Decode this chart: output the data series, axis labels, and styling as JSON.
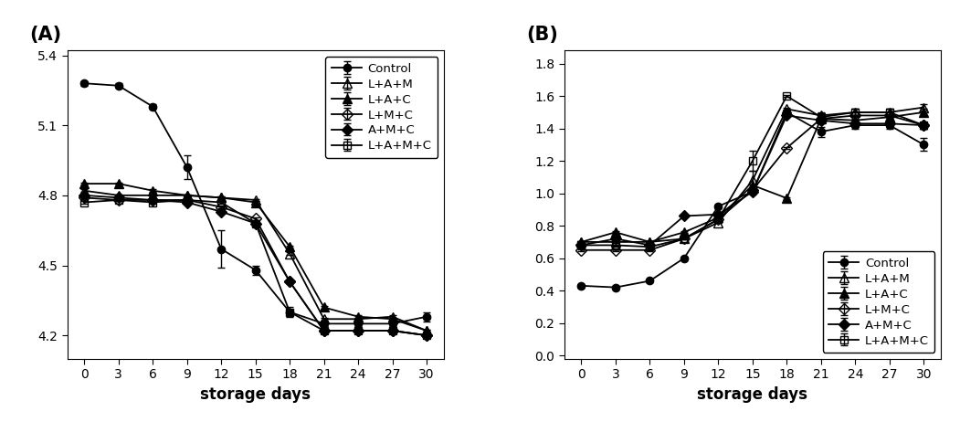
{
  "x": [
    0,
    3,
    6,
    9,
    12,
    15,
    18,
    21,
    24,
    27,
    30
  ],
  "A": {
    "title": "(A)",
    "ylim": [
      4.1,
      5.42
    ],
    "yticks": [
      4.2,
      4.5,
      4.8,
      5.1,
      5.4
    ],
    "series": {
      "Control": [
        5.28,
        5.27,
        5.18,
        4.92,
        4.57,
        4.48,
        4.3,
        4.25,
        4.25,
        4.25,
        4.28
      ],
      "L+A+M": [
        4.82,
        4.8,
        4.8,
        4.8,
        4.79,
        4.78,
        4.55,
        4.27,
        4.27,
        4.28,
        4.22
      ],
      "L+A+C": [
        4.85,
        4.85,
        4.82,
        4.8,
        4.79,
        4.77,
        4.58,
        4.32,
        4.28,
        4.27,
        4.22
      ],
      "L+M+C": [
        4.79,
        4.78,
        4.78,
        4.78,
        4.75,
        4.7,
        4.43,
        4.22,
        4.22,
        4.22,
        4.2
      ],
      "A+M+C": [
        4.8,
        4.79,
        4.78,
        4.77,
        4.73,
        4.68,
        4.43,
        4.22,
        4.22,
        4.22,
        4.2
      ],
      "L+A+M+C": [
        4.77,
        4.78,
        4.77,
        4.78,
        4.77,
        4.68,
        4.3,
        4.22,
        4.22,
        4.22,
        4.2
      ]
    },
    "errors": {
      "Control": [
        0.01,
        0.01,
        0.01,
        0.05,
        0.08,
        0.02,
        0.02,
        0.01,
        0.01,
        0.01,
        0.02
      ],
      "L+A+M": [
        0.005,
        0.005,
        0.005,
        0.005,
        0.005,
        0.005,
        0.005,
        0.005,
        0.005,
        0.005,
        0.005
      ],
      "L+A+C": [
        0.005,
        0.005,
        0.005,
        0.005,
        0.005,
        0.005,
        0.005,
        0.005,
        0.005,
        0.005,
        0.005
      ],
      "L+M+C": [
        0.005,
        0.005,
        0.005,
        0.005,
        0.005,
        0.005,
        0.005,
        0.005,
        0.005,
        0.005,
        0.005
      ],
      "A+M+C": [
        0.005,
        0.005,
        0.005,
        0.005,
        0.005,
        0.005,
        0.005,
        0.005,
        0.005,
        0.005,
        0.005
      ],
      "L+A+M+C": [
        0.005,
        0.005,
        0.005,
        0.005,
        0.005,
        0.005,
        0.005,
        0.005,
        0.005,
        0.005,
        0.005
      ]
    },
    "legend_loc": "upper right"
  },
  "B": {
    "title": "(B)",
    "ylim": [
      -0.02,
      1.88
    ],
    "yticks": [
      0.0,
      0.2,
      0.4,
      0.6,
      0.8,
      1.0,
      1.2,
      1.4,
      1.6,
      1.8
    ],
    "series": {
      "Control": [
        0.43,
        0.42,
        0.46,
        0.6,
        0.92,
        1.01,
        1.5,
        1.38,
        1.42,
        1.42,
        1.3
      ],
      "L+A+M": [
        0.7,
        0.7,
        0.7,
        0.72,
        0.82,
        1.08,
        1.52,
        1.48,
        1.5,
        1.5,
        1.53
      ],
      "L+A+C": [
        0.7,
        0.76,
        0.7,
        0.76,
        0.85,
        1.05,
        0.97,
        1.46,
        1.45,
        1.47,
        1.5
      ],
      "L+M+C": [
        0.65,
        0.65,
        0.65,
        0.72,
        0.84,
        1.02,
        1.28,
        1.46,
        1.48,
        1.48,
        1.42
      ],
      "A+M+C": [
        0.68,
        0.72,
        0.68,
        0.86,
        0.87,
        1.01,
        1.48,
        1.45,
        1.43,
        1.43,
        1.42
      ],
      "L+A+M+C": [
        0.68,
        0.68,
        0.67,
        0.72,
        0.84,
        1.2,
        1.6,
        1.47,
        1.5,
        1.5,
        1.42
      ]
    },
    "errors": {
      "Control": [
        0.01,
        0.01,
        0.01,
        0.01,
        0.01,
        0.01,
        0.01,
        0.03,
        0.02,
        0.02,
        0.04
      ],
      "L+A+M": [
        0.005,
        0.005,
        0.005,
        0.005,
        0.005,
        0.06,
        0.005,
        0.02,
        0.02,
        0.02,
        0.02
      ],
      "L+A+C": [
        0.005,
        0.005,
        0.005,
        0.005,
        0.005,
        0.005,
        0.005,
        0.02,
        0.02,
        0.02,
        0.02
      ],
      "L+M+C": [
        0.005,
        0.005,
        0.005,
        0.005,
        0.005,
        0.005,
        0.005,
        0.02,
        0.02,
        0.02,
        0.02
      ],
      "A+M+C": [
        0.005,
        0.005,
        0.005,
        0.005,
        0.005,
        0.005,
        0.005,
        0.02,
        0.02,
        0.02,
        0.02
      ],
      "L+A+M+C": [
        0.005,
        0.005,
        0.005,
        0.005,
        0.005,
        0.06,
        0.005,
        0.02,
        0.02,
        0.02,
        0.02
      ]
    },
    "legend_loc": "lower right"
  },
  "series_styles": {
    "Control": {
      "marker": "o",
      "fillstyle": "full",
      "color": "#000000",
      "markersize": 6
    },
    "L+A+M": {
      "marker": "^",
      "fillstyle": "none",
      "color": "#000000",
      "markersize": 7
    },
    "L+A+C": {
      "marker": "^",
      "fillstyle": "full",
      "color": "#000000",
      "markersize": 7
    },
    "L+M+C": {
      "marker": "D",
      "fillstyle": "none",
      "color": "#000000",
      "markersize": 6
    },
    "A+M+C": {
      "marker": "D",
      "fillstyle": "full",
      "color": "#000000",
      "markersize": 6
    },
    "L+A+M+C": {
      "marker": "s",
      "fillstyle": "none",
      "color": "#000000",
      "markersize": 6
    }
  },
  "series_order": [
    "Control",
    "L+A+M",
    "L+A+C",
    "L+M+C",
    "A+M+C",
    "L+A+M+C"
  ],
  "xlabel": "storage days",
  "xticks": [
    0,
    3,
    6,
    9,
    12,
    15,
    18,
    21,
    24,
    27,
    30
  ],
  "background_color": "#ffffff",
  "legend_fontsize": 9.5,
  "axis_label_fontsize": 12,
  "tick_fontsize": 10,
  "panel_label_fontsize": 15,
  "linewidth": 1.3,
  "capsize": 3,
  "elinewidth": 1.0
}
